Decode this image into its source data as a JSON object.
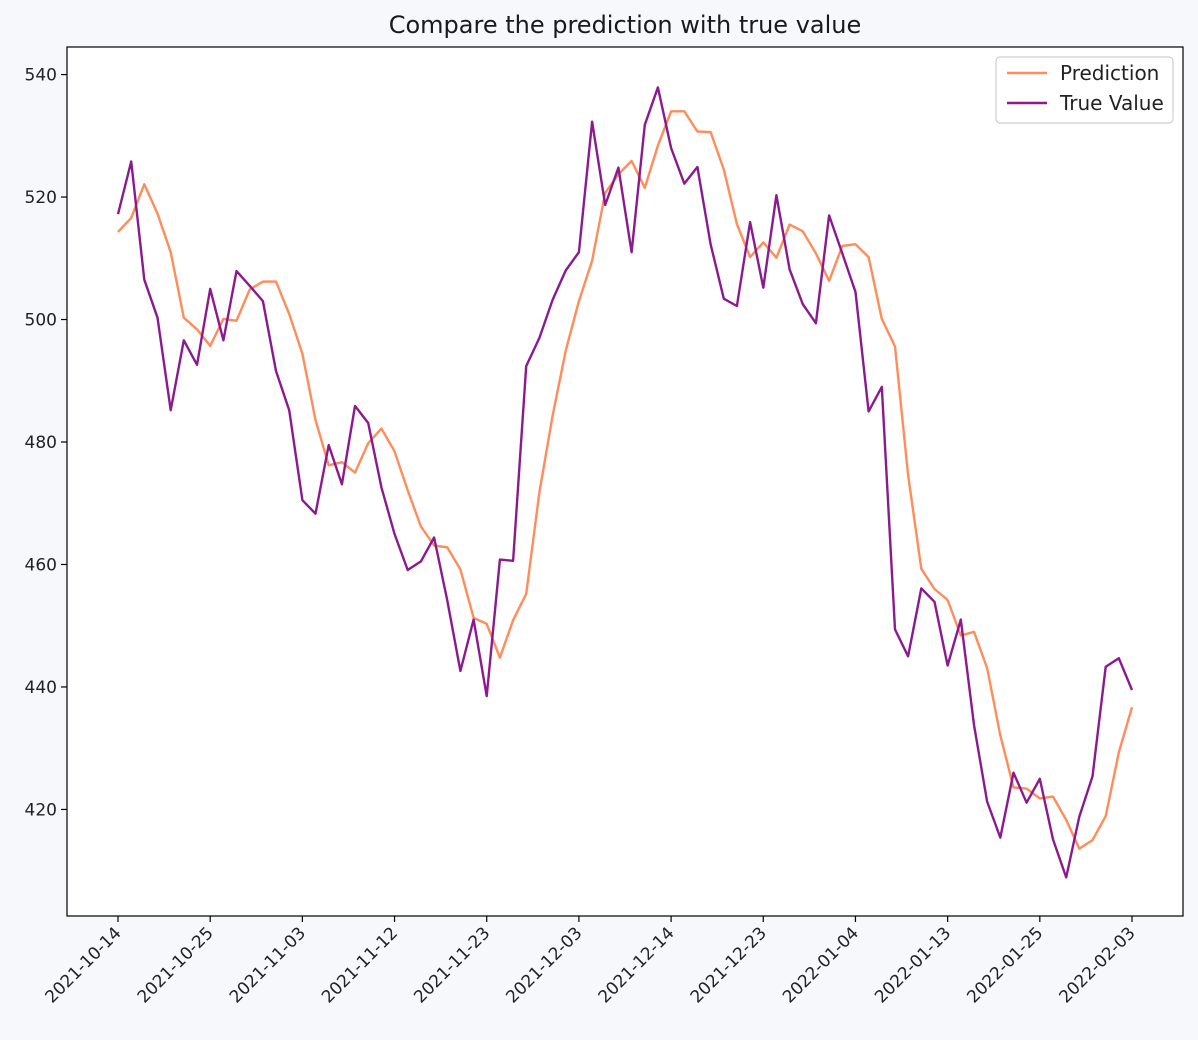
{
  "chart_data": {
    "type": "line",
    "title": "Compare the prediction with true value",
    "xlabel": "",
    "ylabel": "",
    "x_ticks": [
      "2021-10-14",
      "2021-10-25",
      "2021-11-03",
      "2021-11-12",
      "2021-11-23",
      "2021-12-03",
      "2021-12-14",
      "2021-12-23",
      "2022-01-04",
      "2022-01-13",
      "2022-01-25",
      "2022-02-03"
    ],
    "y_ticks": [
      420,
      440,
      460,
      480,
      500,
      520,
      540
    ],
    "ylim": [
      402.6,
      544.5
    ],
    "grid": false,
    "legend_position": "top-right",
    "series": [
      {
        "name": "Prediction",
        "color": "#ff8c5a",
        "values": [
          514.3,
          516.6,
          522.1,
          517.3,
          511.0,
          500.3,
          498.4,
          495.7,
          500.1,
          499.8,
          504.9,
          506.2,
          506.2,
          500.9,
          494.4,
          483.6,
          476.2,
          476.7,
          475.0,
          479.8,
          482.2,
          478.5,
          472.1,
          466.2,
          463.1,
          462.8,
          459.2,
          451.3,
          450.3,
          444.8,
          450.9,
          455.2,
          471.8,
          484.3,
          494.9,
          503.0,
          509.6,
          520.7,
          523.7,
          525.9,
          521.5,
          528.4,
          534.0,
          534.0,
          530.7,
          530.6,
          524.5,
          515.6,
          510.2,
          512.6,
          510.1,
          515.5,
          514.4,
          510.8,
          506.3,
          512.0,
          512.3,
          510.2,
          500.1,
          495.6,
          474.6,
          459.3,
          456.0,
          454.2,
          448.4,
          449.0,
          443.1,
          432.1,
          423.6,
          423.4,
          421.8,
          422.1,
          418.3,
          413.6,
          415.0,
          418.9,
          429.3,
          436.7
        ]
      },
      {
        "name": "True Value",
        "color": "#8b1a8f",
        "values": [
          517.2,
          525.8,
          506.5,
          500.3,
          485.2,
          496.6,
          492.6,
          505.0,
          496.6,
          507.9,
          505.5,
          503.0,
          491.6,
          485.2,
          470.5,
          468.3,
          479.5,
          473.1,
          485.9,
          483.1,
          472.6,
          465.0,
          459.1,
          460.5,
          464.4,
          454.2,
          442.6,
          451.0,
          438.5,
          460.8,
          460.6,
          492.4,
          497.0,
          503.2,
          508.0,
          511.0,
          532.3,
          518.7,
          524.8,
          511.0,
          531.8,
          537.9,
          528.0,
          522.2,
          524.9,
          512.3,
          503.4,
          502.2,
          515.9,
          505.2,
          520.3,
          508.2,
          502.5,
          499.4,
          517.0,
          510.8,
          504.5,
          485.0,
          489.0,
          449.4,
          445.0,
          456.1,
          453.9,
          443.5,
          451.0,
          433.8,
          421.3,
          415.4,
          426.0,
          421.1,
          425.0,
          415.1,
          408.9,
          418.8,
          425.4,
          443.3,
          444.7,
          439.5
        ]
      }
    ]
  }
}
